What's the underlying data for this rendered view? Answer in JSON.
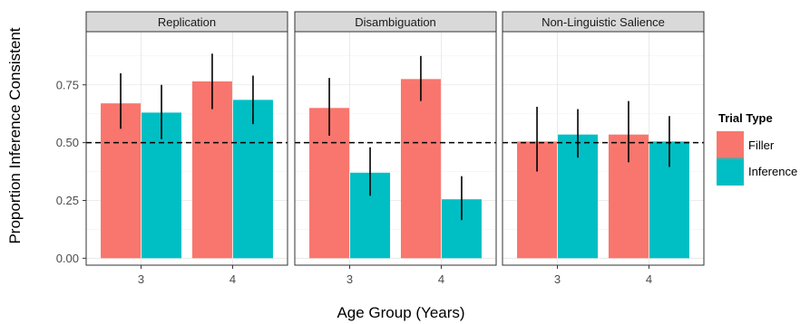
{
  "chart_data": {
    "type": "bar",
    "xlabel": "Age Group (Years)",
    "ylabel": "Proportion Inference Consistent",
    "ylim": [
      -0.03,
      0.98
    ],
    "yticks": [
      "0.00",
      "0.25",
      "0.50",
      "0.75"
    ],
    "ytick_values": [
      0,
      0.25,
      0.5,
      0.75
    ],
    "reference_line": 0.5,
    "grid": true,
    "legend_placement": "right",
    "legend": {
      "title": "Trial Type",
      "entries": [
        "Filler",
        "Inference"
      ]
    },
    "colors": {
      "Filler": "#F8766D",
      "Inference": "#00BFC4"
    },
    "panels": [
      {
        "title": "Replication",
        "categories": [
          "3",
          "4"
        ],
        "series": [
          {
            "name": "Filler",
            "values": [
              0.67,
              0.765
            ],
            "err_low": [
              0.56,
              0.645
            ],
            "err_high": [
              0.8,
              0.885
            ]
          },
          {
            "name": "Inference",
            "values": [
              0.63,
              0.685
            ],
            "err_low": [
              0.515,
              0.58
            ],
            "err_high": [
              0.75,
              0.79
            ]
          }
        ]
      },
      {
        "title": "Disambiguation",
        "categories": [
          "3",
          "4"
        ],
        "series": [
          {
            "name": "Filler",
            "values": [
              0.65,
              0.775
            ],
            "err_low": [
              0.53,
              0.68
            ],
            "err_high": [
              0.78,
              0.875
            ]
          },
          {
            "name": "Inference",
            "values": [
              0.37,
              0.255
            ],
            "err_low": [
              0.27,
              0.165
            ],
            "err_high": [
              0.48,
              0.355
            ]
          }
        ]
      },
      {
        "title": "Non-Linguistic Salience",
        "categories": [
          "3",
          "4"
        ],
        "series": [
          {
            "name": "Filler",
            "values": [
              0.505,
              0.535
            ],
            "err_low": [
              0.375,
              0.415
            ],
            "err_high": [
              0.655,
              0.68
            ]
          },
          {
            "name": "Inference",
            "values": [
              0.535,
              0.505
            ],
            "err_low": [
              0.435,
              0.395
            ],
            "err_high": [
              0.645,
              0.615
            ]
          }
        ]
      }
    ]
  }
}
